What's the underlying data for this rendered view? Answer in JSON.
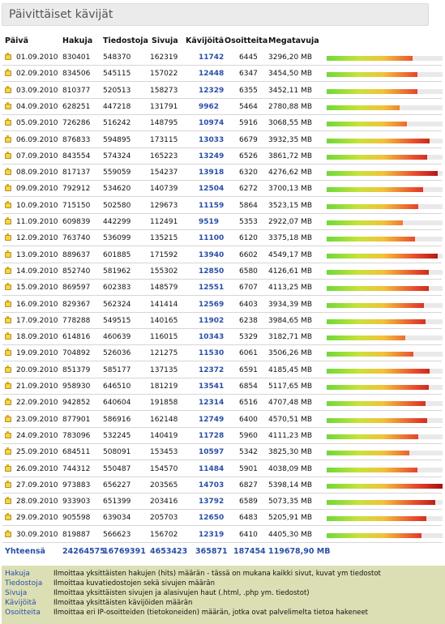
{
  "title": "Päivittäiset kävijät",
  "headers": [
    "Päivä",
    "Hakuja",
    "Tiedostoja",
    "Sivuja",
    "Kävijöitä",
    "Osoitteita",
    "Megatavuja"
  ],
  "rows": [
    {
      "date": "01.09.2010",
      "hits": "830401",
      "files": "548370",
      "pages": "162319",
      "visits": "11742",
      "sites": "6445",
      "mb": "3296,20 MB",
      "bar": 0.74
    },
    {
      "date": "02.09.2010",
      "hits": "834506",
      "files": "545115",
      "pages": "157022",
      "visits": "12448",
      "sites": "6347",
      "mb": "3454,50 MB",
      "bar": 0.78
    },
    {
      "date": "03.09.2010",
      "hits": "810377",
      "files": "520513",
      "pages": "158273",
      "visits": "12329",
      "sites": "6355",
      "mb": "3452,11 MB",
      "bar": 0.78
    },
    {
      "date": "04.09.2010",
      "hits": "628251",
      "files": "447218",
      "pages": "131791",
      "visits": "9962",
      "sites": "5464",
      "mb": "2780,88 MB",
      "bar": 0.63
    },
    {
      "date": "05.09.2010",
      "hits": "726286",
      "files": "516242",
      "pages": "148795",
      "visits": "10974",
      "sites": "5916",
      "mb": "3068,55 MB",
      "bar": 0.69
    },
    {
      "date": "06.09.2010",
      "hits": "876833",
      "files": "594895",
      "pages": "173115",
      "visits": "13033",
      "sites": "6679",
      "mb": "3932,35 MB",
      "bar": 0.89
    },
    {
      "date": "07.09.2010",
      "hits": "843554",
      "files": "574324",
      "pages": "165223",
      "visits": "13249",
      "sites": "6526",
      "mb": "3861,72 MB",
      "bar": 0.87
    },
    {
      "date": "08.09.2010",
      "hits": "817137",
      "files": "559059",
      "pages": "154237",
      "visits": "13918",
      "sites": "6320",
      "mb": "4276,62 MB",
      "bar": 0.96
    },
    {
      "date": "09.09.2010",
      "hits": "792912",
      "files": "534620",
      "pages": "140739",
      "visits": "12504",
      "sites": "6272",
      "mb": "3700,13 MB",
      "bar": 0.83
    },
    {
      "date": "10.09.2010",
      "hits": "715150",
      "files": "502580",
      "pages": "129673",
      "visits": "11159",
      "sites": "5864",
      "mb": "3523,15 MB",
      "bar": 0.79
    },
    {
      "date": "11.09.2010",
      "hits": "609839",
      "files": "442299",
      "pages": "112491",
      "visits": "9519",
      "sites": "5353",
      "mb": "2922,07 MB",
      "bar": 0.66
    },
    {
      "date": "12.09.2010",
      "hits": "763740",
      "files": "536099",
      "pages": "135215",
      "visits": "11100",
      "sites": "6120",
      "mb": "3375,18 MB",
      "bar": 0.76
    },
    {
      "date": "13.09.2010",
      "hits": "889637",
      "files": "601885",
      "pages": "171592",
      "visits": "13940",
      "sites": "6602",
      "mb": "4549,17 MB",
      "bar": 0.96
    },
    {
      "date": "14.09.2010",
      "hits": "852740",
      "files": "581962",
      "pages": "155302",
      "visits": "12850",
      "sites": "6580",
      "mb": "4126,61 MB",
      "bar": 0.88
    },
    {
      "date": "15.09.2010",
      "hits": "869597",
      "files": "602383",
      "pages": "148579",
      "visits": "12551",
      "sites": "6707",
      "mb": "4113,25 MB",
      "bar": 0.88
    },
    {
      "date": "16.09.2010",
      "hits": "829367",
      "files": "562324",
      "pages": "141414",
      "visits": "12569",
      "sites": "6403",
      "mb": "3934,39 MB",
      "bar": 0.84
    },
    {
      "date": "17.09.2010",
      "hits": "778288",
      "files": "549515",
      "pages": "140165",
      "visits": "11902",
      "sites": "6238",
      "mb": "3984,65 MB",
      "bar": 0.85
    },
    {
      "date": "18.09.2010",
      "hits": "614816",
      "files": "460639",
      "pages": "116015",
      "visits": "10343",
      "sites": "5329",
      "mb": "3182,71 MB",
      "bar": 0.68
    },
    {
      "date": "19.09.2010",
      "hits": "704892",
      "files": "526036",
      "pages": "121275",
      "visits": "11530",
      "sites": "6061",
      "mb": "3506,26 MB",
      "bar": 0.75
    },
    {
      "date": "20.09.2010",
      "hits": "851379",
      "files": "585177",
      "pages": "137135",
      "visits": "12372",
      "sites": "6591",
      "mb": "4185,45 MB",
      "bar": 0.89
    },
    {
      "date": "21.09.2010",
      "hits": "958930",
      "files": "646510",
      "pages": "181219",
      "visits": "13541",
      "sites": "6854",
      "mb": "5117,65 MB",
      "bar": 0.88
    },
    {
      "date": "22.09.2010",
      "hits": "942852",
      "files": "640604",
      "pages": "191858",
      "visits": "12314",
      "sites": "6516",
      "mb": "4707,48 MB",
      "bar": 0.85
    },
    {
      "date": "23.09.2010",
      "hits": "877901",
      "files": "586916",
      "pages": "162148",
      "visits": "12749",
      "sites": "6400",
      "mb": "4570,51 MB",
      "bar": 0.87
    },
    {
      "date": "24.09.2010",
      "hits": "783096",
      "files": "532245",
      "pages": "140419",
      "visits": "11728",
      "sites": "5960",
      "mb": "4111,23 MB",
      "bar": 0.79
    },
    {
      "date": "25.09.2010",
      "hits": "684511",
      "files": "508091",
      "pages": "153453",
      "visits": "10597",
      "sites": "5342",
      "mb": "3825,30 MB",
      "bar": 0.71
    },
    {
      "date": "26.09.2010",
      "hits": "744312",
      "files": "550487",
      "pages": "154570",
      "visits": "11484",
      "sites": "5901",
      "mb": "4038,09 MB",
      "bar": 0.78
    },
    {
      "date": "27.09.2010",
      "hits": "973883",
      "files": "656227",
      "pages": "203565",
      "visits": "14703",
      "sites": "6827",
      "mb": "5398,14 MB",
      "bar": 1.0
    },
    {
      "date": "28.09.2010",
      "hits": "933903",
      "files": "651399",
      "pages": "203416",
      "visits": "13792",
      "sites": "6589",
      "mb": "5073,35 MB",
      "bar": 0.94
    },
    {
      "date": "29.09.2010",
      "hits": "905598",
      "files": "639034",
      "pages": "205703",
      "visits": "12650",
      "sites": "6483",
      "mb": "5205,91 MB",
      "bar": 0.86
    },
    {
      "date": "30.09.2010",
      "hits": "819887",
      "files": "566623",
      "pages": "156702",
      "visits": "12319",
      "sites": "6410",
      "mb": "4405,30 MB",
      "bar": 0.82
    }
  ],
  "totals": {
    "label": "Yhteensä",
    "hits": "24264575",
    "files": "16769391",
    "pages": "4653423",
    "visits": "365871",
    "sites": "187454",
    "mb": "119678,90 MB"
  },
  "legend": [
    {
      "key": "Hakuja",
      "text": "Ilmoittaa yksittäisten hakujen (hits) määrän - tässä on mukana kaikki sivut, kuvat ym tiedostot"
    },
    {
      "key": "Tiedostoja",
      "text": "Ilmoittaa kuvatiedostojen sekä sivujen määrän"
    },
    {
      "key": "Sivuja",
      "text": "Ilmoittaa yksittäisten sivujen ja alasivujen haut (.html, .php ym. tiedostot)"
    },
    {
      "key": "Kävijöitä",
      "text": "Ilmoittaa yksittäisten kävijöiden määrän"
    },
    {
      "key": "Osoitteita",
      "text": "Ilmoittaa eri IP-osoitteiden (tietokoneiden) määrän, jotka ovat palvelimelta tietoa hakeneet"
    }
  ]
}
